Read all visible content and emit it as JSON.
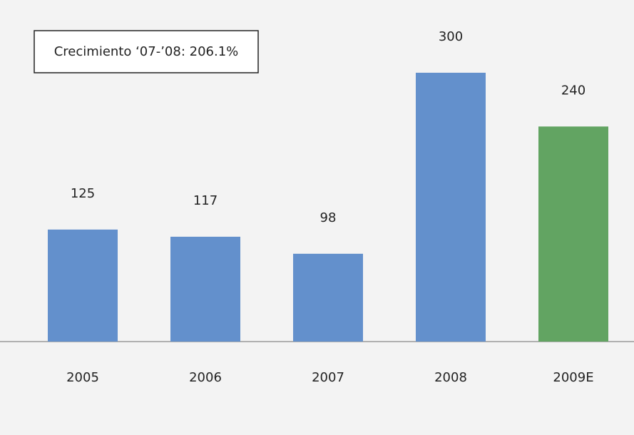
{
  "chart_data": {
    "type": "bar",
    "annotation": "Crecimiento ‘07-’08: 206.1%",
    "categories": [
      "2005",
      "2006",
      "2007",
      "2008",
      "2009E"
    ],
    "values": [
      125,
      117,
      98,
      300,
      240
    ],
    "colors": [
      "#6390cc",
      "#6390cc",
      "#6390cc",
      "#6390cc",
      "#62a462"
    ]
  }
}
